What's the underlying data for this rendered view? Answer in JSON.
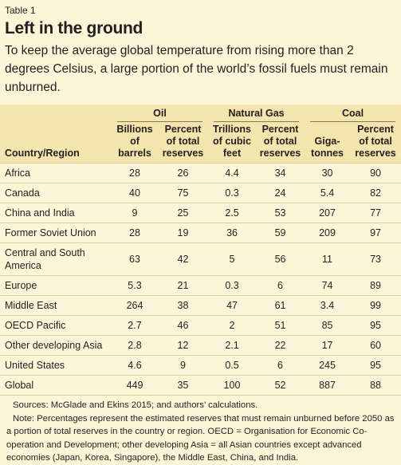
{
  "header": {
    "label": "Table 1",
    "title": "Left in the ground",
    "subtitle": "To keep the average global temperature from rising more than 2 degrees Celsius, a large portion of the world’s fossil fuels must remain unburned."
  },
  "table": {
    "groups": [
      "Oil",
      "Natural Gas",
      "Coal"
    ],
    "columns": [
      [
        "Country/Region"
      ],
      [
        "Billions",
        "of",
        "barrels"
      ],
      [
        "Percent",
        "of total",
        "reserves"
      ],
      [
        "Trillions",
        "of cubic",
        "feet"
      ],
      [
        "Percent",
        "of total",
        "reserves"
      ],
      [
        "Giga-",
        "tonnes"
      ],
      [
        "Percent",
        "of total",
        "reserves"
      ]
    ],
    "rows": [
      [
        "Africa",
        28,
        26,
        4.4,
        34,
        30,
        90
      ],
      [
        "Canada",
        40,
        75,
        0.3,
        24,
        5.4,
        82
      ],
      [
        "China and India",
        9,
        25,
        2.5,
        53,
        207,
        77
      ],
      [
        "Former Soviet Union",
        28,
        19,
        36,
        59,
        209,
        97
      ],
      [
        "Central and South America",
        63,
        42,
        5,
        56,
        11,
        73
      ],
      [
        "Europe",
        5.3,
        21,
        0.3,
        6,
        74,
        89
      ],
      [
        "Middle East",
        264,
        38,
        47,
        61,
        3.4,
        99
      ],
      [
        "OECD Pacific",
        2.7,
        46,
        2,
        51,
        85,
        95
      ],
      [
        "Other developing Asia",
        2.8,
        12,
        2.1,
        22,
        17,
        60
      ],
      [
        "United States",
        4.6,
        9,
        0.5,
        6,
        245,
        95
      ],
      [
        "Global",
        449,
        35,
        100,
        52,
        887,
        88
      ]
    ]
  },
  "notes": {
    "source": "Sources: McGlade and Ekins 2015; and authors’ calculations.",
    "note": "Note: Percentages represent the estimated reserves that must remain unburned before 2050 as a portion of total reserves in the country or region. OECD = Organisation for Economic Co-operation and Development; other developing Asia = all Asian countries except advanced economies (Japan, Korea, Singapore), the Middle East, China, and India."
  }
}
